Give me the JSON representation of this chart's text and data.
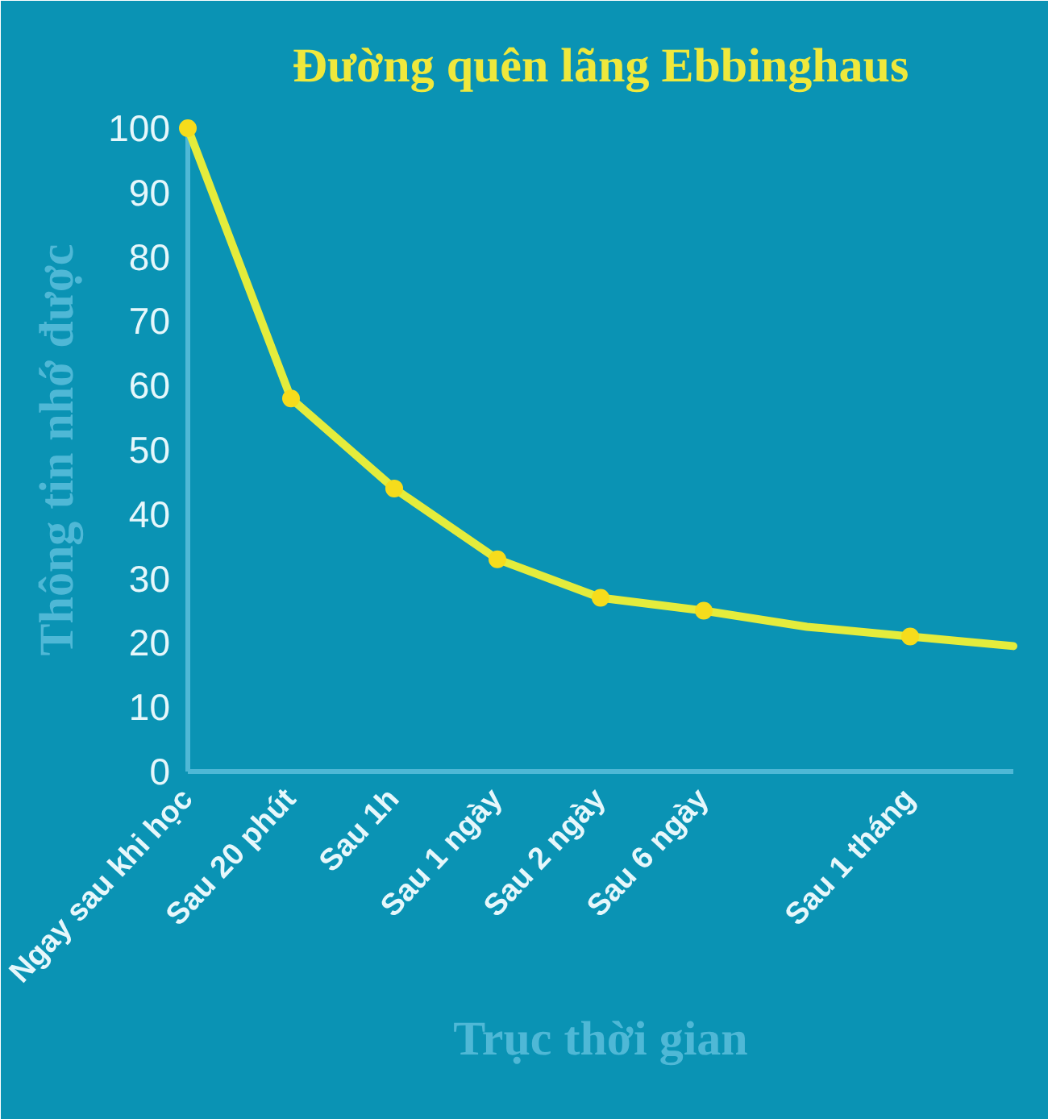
{
  "chart_data": {
    "type": "line",
    "title": "Đường quên lãng Ebbinghaus",
    "xlabel": "Trục thời gian",
    "ylabel": "Thông tin nhớ được",
    "categories": [
      "Ngay sau khi học",
      "Sau 20 phút",
      "Sau 1h",
      "Sau 1 ngày",
      "Sau 2 ngày",
      "Sau 6 ngày",
      null,
      "Sau 1 tháng",
      null
    ],
    "ylim": [
      0,
      100
    ],
    "yticks": [
      0,
      10,
      20,
      30,
      40,
      50,
      60,
      70,
      80,
      90,
      100
    ],
    "grid": false,
    "series": [
      {
        "color": "#e4ec3c",
        "marker": "none",
        "values": [
          100,
          58,
          44,
          33,
          27,
          25,
          22.5,
          21,
          19.5
        ]
      },
      {
        "type": "scatter",
        "color": "#f6dc1c",
        "marker": "circle",
        "values": [
          100,
          58,
          44,
          33,
          27,
          25,
          null,
          21,
          null
        ]
      }
    ]
  }
}
